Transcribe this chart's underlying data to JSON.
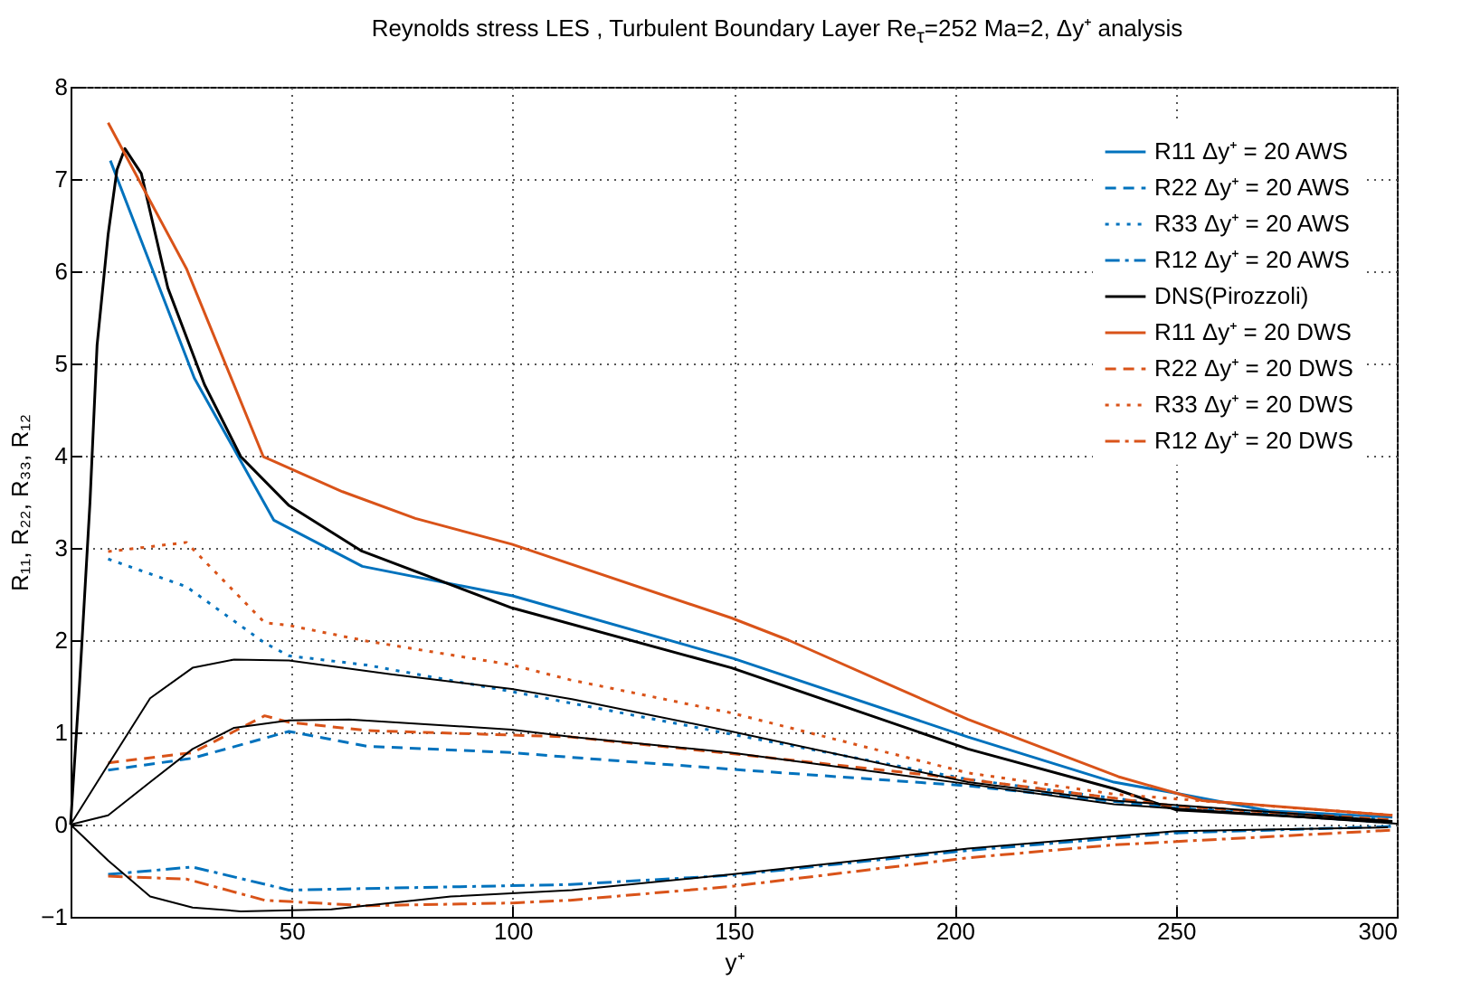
{
  "chart_data": {
    "type": "line",
    "title": "Reynolds stress LES , Turbulent Boundary Layer Re$_{τ}$=252 Ma=2, Δy⁺ analysis",
    "xlabel": "y⁺",
    "ylabel": "R₁₁, R₂₂, R₃₃, R₁₂",
    "xlim": [
      0,
      300
    ],
    "xticks": [
      50,
      100,
      150,
      200,
      250,
      300
    ],
    "ylim": [
      -1,
      8
    ],
    "yticks": [
      -1,
      0,
      1,
      2,
      3,
      4,
      5,
      6,
      7,
      8
    ],
    "grid": true,
    "legend": "top right",
    "marker": "none",
    "series": [
      {
        "name": "R11 Δy⁺ = 20 AWS",
        "color": "#0072bd",
        "line_style": "solid",
        "x": [
          9,
          28,
          46,
          66,
          100,
          150,
          203,
          236,
          250,
          271,
          299
        ],
        "values": [
          7.2,
          4.84,
          3.3,
          2.8,
          2.48,
          1.8,
          0.95,
          0.46,
          0.34,
          0.15,
          0.08
        ]
      },
      {
        "name": "R22 Δy⁺ = 20 AWS",
        "color": "#0072bd",
        "line_style": "dashed",
        "x": [
          8.5,
          27.6,
          49.4,
          67,
          100,
          113,
          149.5,
          203,
          250,
          299
        ],
        "values": [
          0.59,
          0.72,
          1.01,
          0.85,
          0.78,
          0.73,
          0.6,
          0.42,
          0.18,
          0.02
        ]
      },
      {
        "name": "R33 Δy⁺ = 20 AWS",
        "color": "#0072bd",
        "line_style": "dotted",
        "x": [
          8.5,
          26.2,
          43.9,
          49.4,
          67,
          100,
          149.5,
          203,
          250,
          299
        ],
        "values": [
          2.88,
          2.58,
          1.97,
          1.83,
          1.73,
          1.44,
          0.98,
          0.49,
          0.2,
          0.05
        ]
      },
      {
        "name": "R12 Δy⁺ = 20 AWS",
        "color": "#0072bd",
        "line_style": "dashdot",
        "x": [
          8.5,
          27.6,
          49.4,
          113,
          149.5,
          203,
          250,
          299
        ],
        "values": [
          -0.54,
          -0.46,
          -0.71,
          -0.65,
          -0.55,
          -0.28,
          -0.09,
          -0.02
        ]
      },
      {
        "name": "DNS(Pirozzoli)",
        "color": "#000000",
        "line_style": "solid",
        "x": [
          0,
          2,
          4.4,
          6,
          8.5,
          10.5,
          12.3,
          16,
          22,
          30.3,
          38.5,
          49.4,
          65.7,
          99.8,
          149.5,
          203,
          236,
          250,
          299
        ],
        "values": [
          0,
          1.5,
          3.5,
          5.2,
          6.4,
          7.1,
          7.33,
          7.06,
          5.82,
          4.77,
          3.99,
          3.46,
          2.97,
          2.35,
          1.7,
          0.82,
          0.39,
          0.16,
          0.03
        ]
      },
      {
        "name": "R11 Δy⁺ = 20 DWS",
        "color": "#d95319",
        "line_style": "solid",
        "x": [
          8.5,
          26.2,
          43.6,
          61.5,
          78,
          99.8,
          149.5,
          162.4,
          203,
          237,
          256,
          299
        ],
        "values": [
          7.61,
          6.03,
          3.99,
          3.61,
          3.32,
          3.04,
          2.24,
          2.0,
          1.14,
          0.52,
          0.26,
          0.1
        ]
      },
      {
        "name": "R22 Δy⁺ = 20 DWS",
        "color": "#d95319",
        "line_style": "dashed",
        "x": [
          8.5,
          27.6,
          43.9,
          49.4,
          67,
          100,
          113,
          149.5,
          203,
          250,
          299
        ],
        "values": [
          0.67,
          0.78,
          1.18,
          1.11,
          1.02,
          0.97,
          0.95,
          0.77,
          0.49,
          0.2,
          0.05
        ]
      },
      {
        "name": "R33 Δy⁺ = 20 DWS",
        "color": "#d95319",
        "line_style": "dotted",
        "x": [
          8.5,
          26.2,
          43.9,
          49.4,
          67,
          100,
          113,
          149.5,
          203,
          236,
          299
        ],
        "values": [
          2.96,
          3.06,
          2.19,
          2.16,
          1.99,
          1.73,
          1.57,
          1.21,
          0.56,
          0.33,
          0.1
        ]
      },
      {
        "name": "R12 Δy⁺ = 20 DWS",
        "color": "#d95319",
        "line_style": "dashdot",
        "x": [
          8.5,
          26.2,
          43.9,
          67,
          100,
          113,
          149.5,
          203,
          236,
          299
        ],
        "values": [
          -0.56,
          -0.59,
          -0.82,
          -0.88,
          -0.85,
          -0.82,
          -0.67,
          -0.36,
          -0.22,
          -0.06
        ]
      },
      {
        "color": "#000000",
        "line_style": "solid",
        "x": [
          0,
          8.5,
          18,
          27.6,
          37,
          49.4,
          72.5,
          99.8,
          113.4,
          149.5,
          203,
          236,
          299
        ],
        "values": [
          0,
          0.65,
          1.37,
          1.7,
          1.79,
          1.78,
          1.63,
          1.47,
          1.36,
          1.01,
          0.46,
          0.26,
          0.04
        ]
      },
      {
        "color": "#000000",
        "line_style": "solid",
        "x": [
          0,
          8.5,
          18,
          27.6,
          37,
          49.4,
          63,
          99.8,
          113.4,
          149.5,
          203,
          236,
          300
        ],
        "values": [
          0,
          0.1,
          0.46,
          0.82,
          1.05,
          1.13,
          1.14,
          1.03,
          0.95,
          0.78,
          0.44,
          0.22,
          0.01
        ]
      },
      {
        "color": "#000000",
        "line_style": "solid",
        "x": [
          0,
          8.5,
          18,
          27.6,
          38.5,
          59,
          86,
          113.4,
          149.5,
          203,
          250,
          298
        ],
        "values": [
          0,
          -0.39,
          -0.78,
          -0.9,
          -0.94,
          -0.92,
          -0.78,
          -0.71,
          -0.54,
          -0.26,
          -0.07,
          -0.03
        ]
      }
    ]
  }
}
